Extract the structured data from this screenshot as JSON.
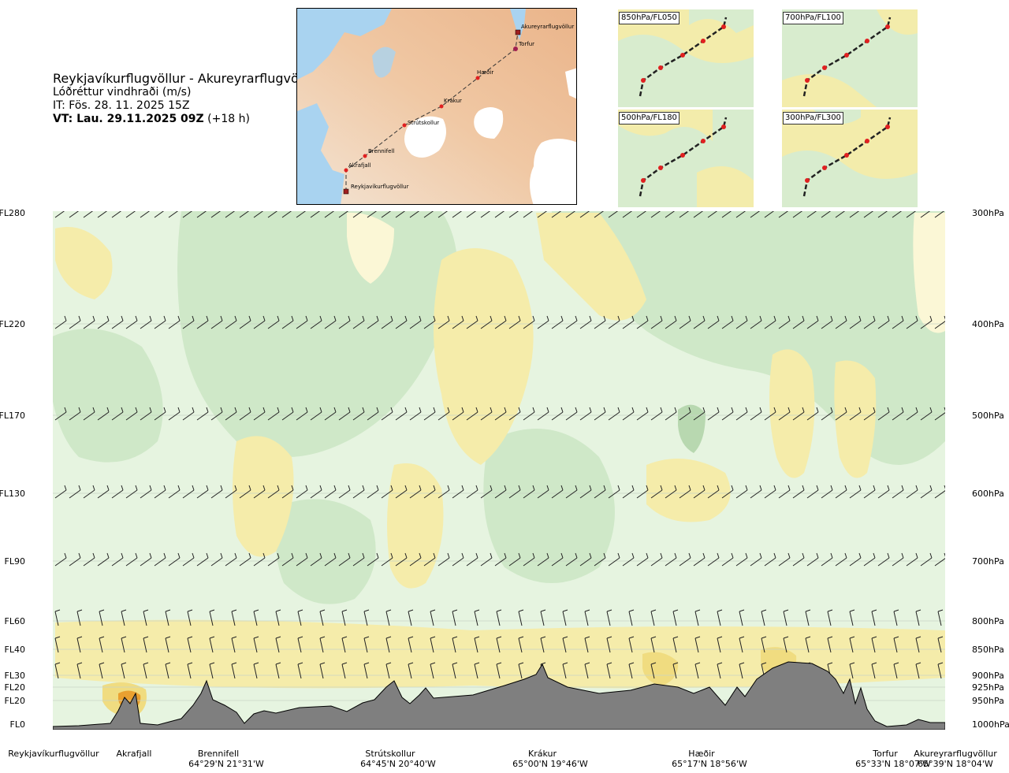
{
  "title": {
    "route": "Reykjavíkurflugvöllur - Akureyrarflugvöllur",
    "product": "Lóðréttur vindhraði (m/s)",
    "issue_time": "IT: Fös. 28. 11. 2025 15Z",
    "valid_time_bold": "VT: Lau. 29.11.2025 09Z",
    "valid_time_lead": "(+18 h)"
  },
  "map": {
    "waypoints": [
      "Akureyrarflugvöllur",
      "Torfur",
      "Hæðir",
      "Krákur",
      "Strútskollur",
      "Brennifell",
      "Akrafjall",
      "Reykjavíkurflugvöllur"
    ]
  },
  "insets": [
    {
      "label": "850hPa/FL050"
    },
    {
      "label": "700hPa/FL100"
    },
    {
      "label": "500hPa/FL180"
    },
    {
      "label": "300hPa/FL300"
    }
  ],
  "chart_data": {
    "type": "heatmap",
    "description_variable": "Lóðréttur vindhraði (m/s)",
    "y_left_ticks": [
      "FL280",
      "FL220",
      "FL170",
      "FL130",
      "FL90",
      "FL60",
      "FL40",
      "FL30",
      "FL20",
      "FL20",
      "FL0"
    ],
    "y_right_ticks": [
      "300hPa",
      "400hPa",
      "500hPa",
      "600hPa",
      "700hPa",
      "800hPa",
      "850hPa",
      "900hPa",
      "925hPa",
      "950hPa",
      "1000hPa"
    ],
    "pressure_levels_hpa": [
      300,
      400,
      500,
      600,
      700,
      800,
      850,
      900,
      925,
      950,
      1000
    ],
    "x_waypoints": [
      {
        "name": "Reykjavíkurflugvöllur",
        "coord": ""
      },
      {
        "name": "Akrafjall",
        "coord": ""
      },
      {
        "name": "Brennifell",
        "coord": "64°29'N 21°31'W"
      },
      {
        "name": "Strútskollur",
        "coord": "64°45'N 20°40'W"
      },
      {
        "name": "Krákur",
        "coord": "65°00'N 19°46'W"
      },
      {
        "name": "Hæðir",
        "coord": "65°17'N 18°56'W"
      },
      {
        "name": "Torfur",
        "coord": "65°33'N 18°07'W"
      },
      {
        "name": "Akureyrarflugvöllur",
        "coord": "65°39'N 18°04'W"
      }
    ],
    "colors": {
      "strong_down": "#b8d8b0",
      "down": "#cfe8c8",
      "weak_down": "#e6f4e0",
      "neutral": "#ffffff",
      "weak_up": "#fbf7d6",
      "up": "#f5ecaa",
      "strong_up": "#f0dc80",
      "very_strong_up": "#e9a030",
      "terrain": "#7f7f7f"
    }
  }
}
